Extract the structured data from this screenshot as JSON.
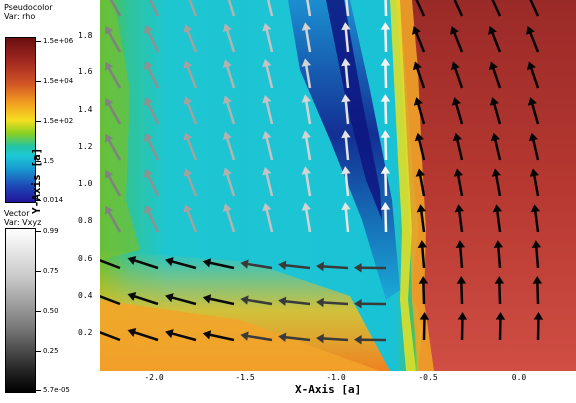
{
  "pseudocolor": {
    "title": "Pseudocolor",
    "var": "Var: rho",
    "labels": [
      "1.5e+06",
      "1.5e+04",
      "1.5e+02",
      "1.5",
      "0.014"
    ]
  },
  "vector": {
    "title": "Vector",
    "var": "Var: Vxyz",
    "labels": [
      "0.99",
      "0.75",
      "0.50",
      "0.25",
      "5.7e-05"
    ]
  },
  "axes": {
    "x_title": "X-Axis [a]",
    "y_title": "Y-Axis [a]",
    "x_ticks": [
      "-2.0",
      "-1.5",
      "-1.0",
      "-0.5",
      "0.0"
    ],
    "y_ticks": [
      "1.8",
      "1.6",
      "1.4",
      "1.2",
      "1.0",
      "0.8",
      "0.6",
      "0.4",
      "0.2"
    ]
  },
  "colors": {
    "rho_scale": [
      "#8b1a1a",
      "#d94a2a",
      "#f2a020",
      "#f6e020",
      "#60c020",
      "#18c8c8",
      "#1a78c8",
      "#1010a0"
    ],
    "vector_scale": [
      "#ffffff",
      "#000000"
    ]
  },
  "chart_data": {
    "type": "heatmap",
    "x_range": [
      -2.35,
      0.3
    ],
    "y_range": [
      0.0,
      1.98
    ],
    "xlabel": "X-Axis [a]",
    "ylabel": "Y-Axis [a]",
    "color_var": "rho",
    "color_scale_log": true,
    "color_range": [
      0.014,
      1500000
    ],
    "vector_var": "Vxyz",
    "vector_range": [
      5.7e-05,
      0.99
    ],
    "grid": false
  }
}
